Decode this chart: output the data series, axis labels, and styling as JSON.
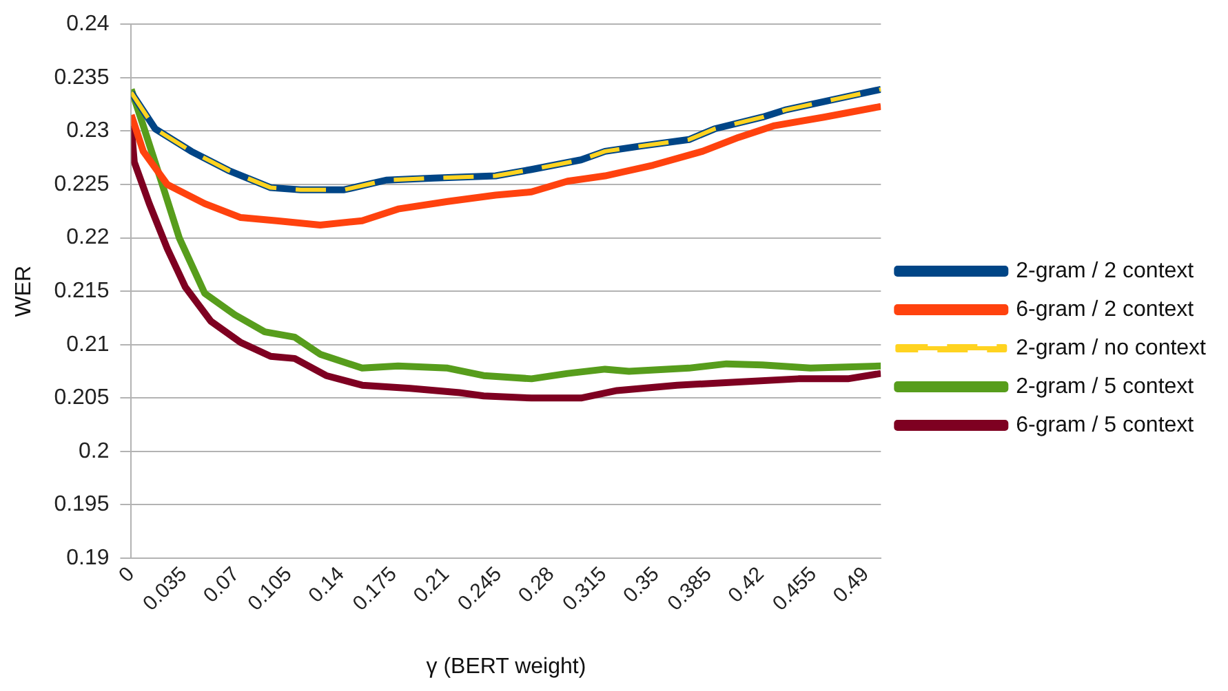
{
  "chart_data": {
    "type": "line",
    "xlabel": "γ (BERT weight)",
    "ylabel": "WER",
    "xlim": [
      0,
      0.5
    ],
    "xticks": [
      0,
      0.035,
      0.07,
      0.105,
      0.14,
      0.175,
      0.21,
      0.245,
      0.28,
      0.315,
      0.35,
      0.385,
      0.42,
      0.455,
      0.49
    ],
    "ylim": [
      0.19,
      0.24
    ],
    "yticks": [
      0.19,
      0.195,
      0.2,
      0.205,
      0.21,
      0.215,
      0.22,
      0.225,
      0.23,
      0.235,
      0.24
    ],
    "grid": "y",
    "legend": "right",
    "marker": "none",
    "series": [
      {
        "name": "2-gram / 2 context",
        "color": "#004586",
        "line_style": "solid",
        "x": [
          0,
          0.016,
          0.04,
          0.065,
          0.093,
          0.113,
          0.142,
          0.17,
          0.202,
          0.243,
          0.267,
          0.3,
          0.316,
          0.34,
          0.372,
          0.389,
          0.421,
          0.437,
          0.47,
          0.5
        ],
        "values": [
          0.2336,
          0.2302,
          0.2281,
          0.2263,
          0.2247,
          0.2245,
          0.2245,
          0.2254,
          0.2256,
          0.2258,
          0.2264,
          0.2273,
          0.2281,
          0.2286,
          0.2292,
          0.2302,
          0.2313,
          0.232,
          0.233,
          0.2339
        ]
      },
      {
        "name": "6-gram / 2 context",
        "color": "#ff420e",
        "line_style": "solid",
        "x": [
          0,
          0.008,
          0.024,
          0.049,
          0.073,
          0.097,
          0.126,
          0.154,
          0.178,
          0.211,
          0.243,
          0.267,
          0.291,
          0.316,
          0.348,
          0.381,
          0.405,
          0.429,
          0.462,
          0.5
        ],
        "values": [
          0.2315,
          0.2281,
          0.225,
          0.2232,
          0.2219,
          0.2216,
          0.2212,
          0.2216,
          0.2227,
          0.2234,
          0.224,
          0.2243,
          0.2253,
          0.2258,
          0.2268,
          0.2281,
          0.2294,
          0.2305,
          0.2313,
          0.2323
        ]
      },
      {
        "name": "2-gram / no context",
        "color": "#ffd320",
        "line_style": "dashed",
        "x": [
          0,
          0.016,
          0.04,
          0.065,
          0.093,
          0.113,
          0.142,
          0.17,
          0.202,
          0.243,
          0.267,
          0.3,
          0.316,
          0.34,
          0.372,
          0.389,
          0.421,
          0.437,
          0.47,
          0.5
        ],
        "values": [
          0.2336,
          0.2302,
          0.2281,
          0.2263,
          0.2247,
          0.2245,
          0.2245,
          0.2254,
          0.2256,
          0.2258,
          0.2264,
          0.2273,
          0.2281,
          0.2286,
          0.2292,
          0.2302,
          0.2313,
          0.232,
          0.233,
          0.2339
        ]
      },
      {
        "name": "2-gram / 5 context",
        "color": "#579d1c",
        "line_style": "solid",
        "x": [
          0,
          0.008,
          0.02,
          0.032,
          0.049,
          0.069,
          0.089,
          0.109,
          0.126,
          0.154,
          0.178,
          0.211,
          0.235,
          0.267,
          0.291,
          0.316,
          0.332,
          0.372,
          0.397,
          0.421,
          0.453,
          0.5
        ],
        "values": [
          0.2339,
          0.2305,
          0.2253,
          0.22,
          0.2148,
          0.2128,
          0.2112,
          0.2107,
          0.2091,
          0.2078,
          0.208,
          0.2078,
          0.2071,
          0.2068,
          0.2073,
          0.2077,
          0.2075,
          0.2078,
          0.2082,
          0.2081,
          0.2078,
          0.208
        ]
      },
      {
        "name": "6-gram / 5 context",
        "color": "#7e0021",
        "line_style": "solid",
        "x": [
          0,
          0.002,
          0.012,
          0.024,
          0.036,
          0.053,
          0.073,
          0.093,
          0.109,
          0.13,
          0.154,
          0.186,
          0.219,
          0.235,
          0.267,
          0.3,
          0.324,
          0.364,
          0.405,
          0.445,
          0.478,
          0.5
        ],
        "values": [
          0.2305,
          0.2271,
          0.2232,
          0.219,
          0.2154,
          0.2122,
          0.2102,
          0.2089,
          0.2087,
          0.2071,
          0.2062,
          0.2059,
          0.2055,
          0.2052,
          0.205,
          0.205,
          0.2057,
          0.2062,
          0.2065,
          0.2068,
          0.2068,
          0.2073
        ]
      }
    ]
  }
}
